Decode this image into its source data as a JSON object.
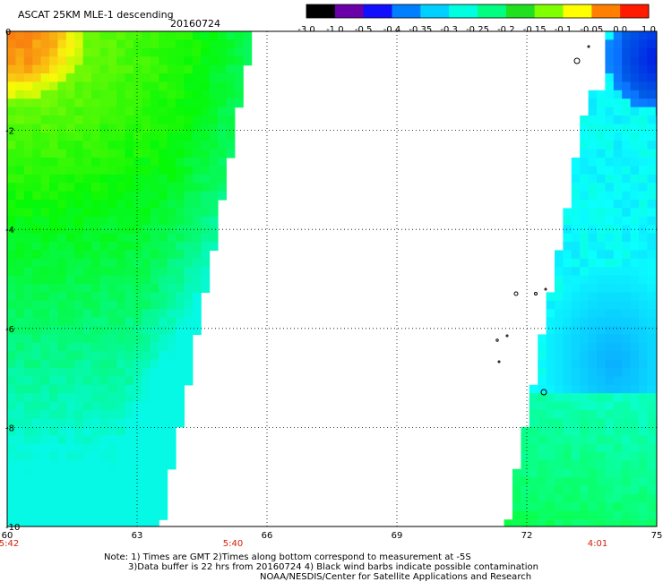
{
  "header": {
    "title": "ASCAT 25KM MLE-1 descending",
    "date": "20160724"
  },
  "colorbar": {
    "labels": [
      "-3.0",
      "-1.0",
      "-0.5",
      "-0.4",
      "-0.35",
      "-0.3",
      "-0.25",
      "-0.2",
      "-0.15",
      "-0.1",
      "-0.05",
      "0.0",
      "1.0"
    ],
    "colors": [
      "#000000",
      "#6a00a8",
      "#1010ff",
      "#0080ff",
      "#00d0ff",
      "#00ffe0",
      "#00ff80",
      "#20e020",
      "#80ff00",
      "#ffff00",
      "#ff8000",
      "#ff1a00"
    ]
  },
  "map": {
    "lon_ticks": [
      "60",
      "63",
      "66",
      "69",
      "72",
      "75"
    ],
    "lat_ticks": [
      "0",
      "-2",
      "-4",
      "-6",
      "-8",
      "-10"
    ],
    "lon_range": [
      60,
      75
    ],
    "lat_range": [
      0,
      -10
    ],
    "grid": true,
    "time_labels": [
      "5:42",
      "5:40",
      "4:01"
    ]
  },
  "notes": {
    "line1": "Note: 1) Times are GMT 2)Times along bottom correspond to measurement at -5S",
    "line2": "3)Data buffer is 22 hrs from 20160724 4) Black wind barbs indicate possible contamination",
    "line3": "NOAA/NESDIS/Center for Satellite Applications and Research"
  }
}
